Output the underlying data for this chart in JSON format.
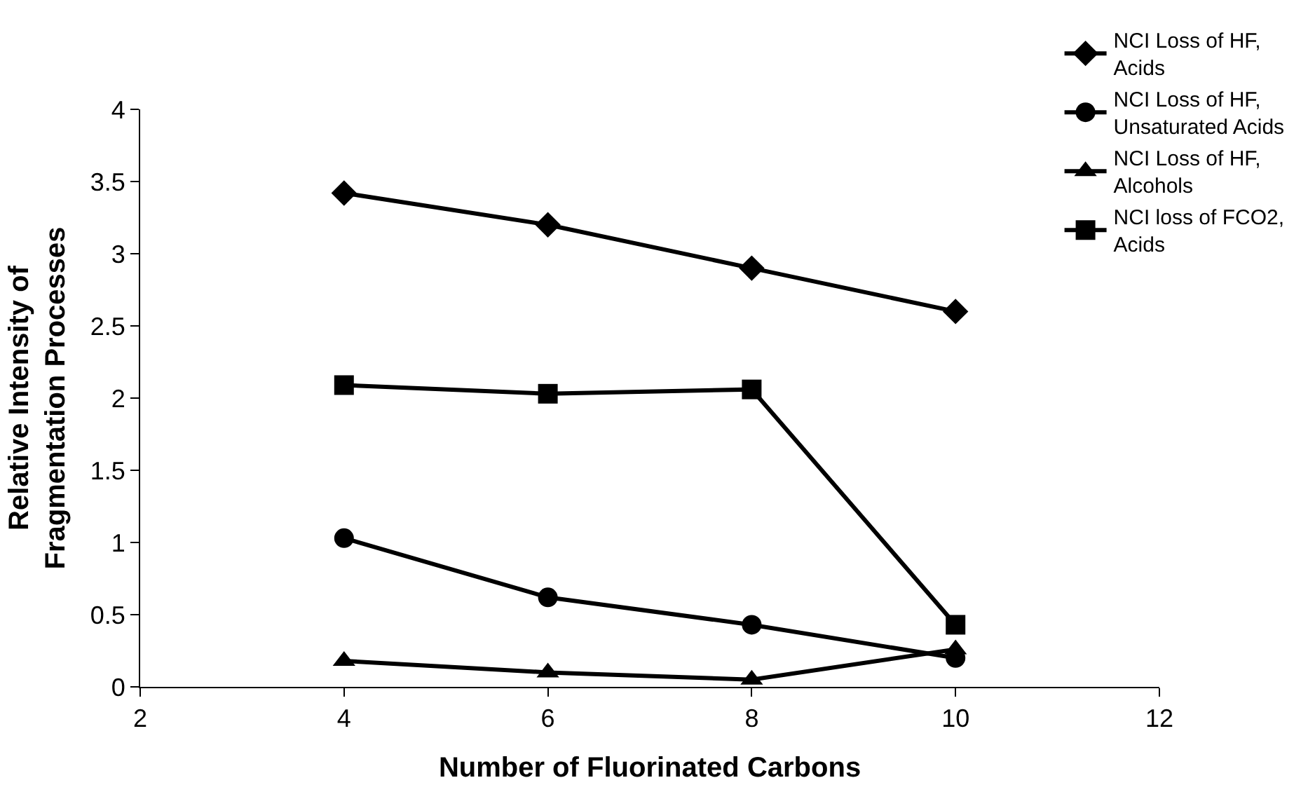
{
  "chart_data": {
    "type": "line",
    "xlabel": "Number of Fluorinated Carbons",
    "ylabel": "Relative Intensity of\nFragmentation Processes",
    "x": [
      4,
      6,
      8,
      10
    ],
    "series": [
      {
        "name": "NCI Loss of HF,\nAcids",
        "color": "#000000",
        "marker": "diamond",
        "values": [
          3.42,
          3.2,
          2.9,
          2.6
        ]
      },
      {
        "name": "NCI Loss of HF,\nUnsaturated Acids",
        "color": "#000000",
        "marker": "circle",
        "values": [
          1.03,
          0.62,
          0.43,
          0.2
        ]
      },
      {
        "name": "NCI Loss of HF,\nAlcohols",
        "color": "#000000",
        "marker": "triangle",
        "values": [
          0.18,
          0.1,
          0.05,
          0.26
        ]
      },
      {
        "name": "NCI loss of FCO2,\nAcids",
        "color": "#000000",
        "marker": "square",
        "values": [
          2.09,
          2.03,
          2.06,
          0.43
        ]
      }
    ],
    "xlim": [
      2,
      12
    ],
    "xticks": [
      2,
      4,
      6,
      8,
      10,
      12
    ],
    "ylim": [
      0,
      4
    ],
    "yticks": [
      0,
      0.5,
      1,
      1.5,
      2,
      2.5,
      3,
      3.5,
      4
    ],
    "legend": "top right",
    "line_style": "solid"
  }
}
